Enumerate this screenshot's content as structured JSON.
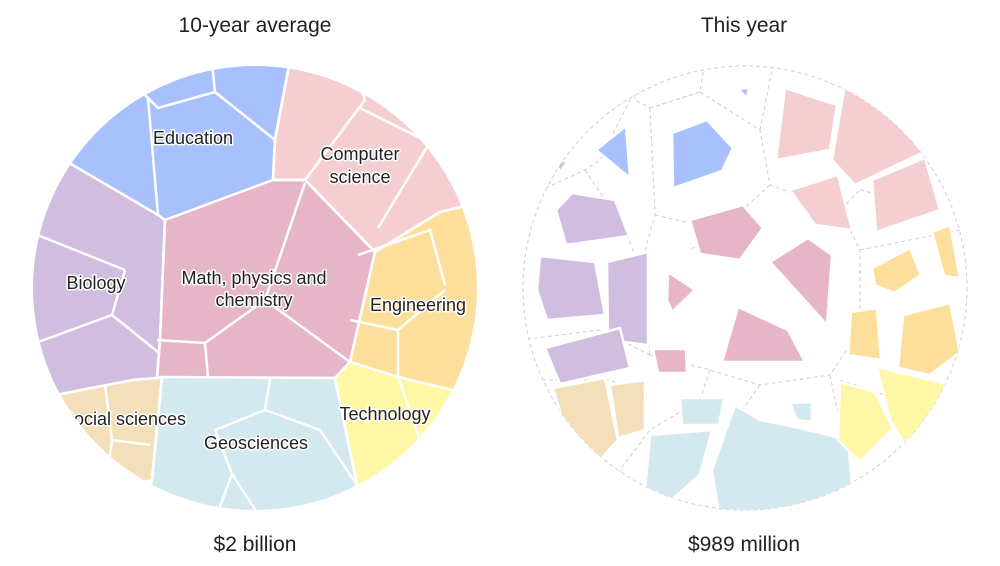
{
  "panels": [
    {
      "title": "10-year average",
      "total": "$2 billion"
    },
    {
      "title": "This year",
      "total": "$989 million"
    }
  ],
  "fields": [
    {
      "key": "education",
      "label": "Education",
      "color": "#a8c0fb"
    },
    {
      "key": "computer_science",
      "label_lines": [
        "Computer",
        "science"
      ],
      "color": "#f4ced0"
    },
    {
      "key": "biology",
      "label": "Biology",
      "color": "#d0bde0"
    },
    {
      "key": "math_physics",
      "label_lines": [
        "Math, physics and",
        "chemistry"
      ],
      "color": "#e6b5c8"
    },
    {
      "key": "engineering",
      "label": "Engineering",
      "color": "#fddf9b"
    },
    {
      "key": "social_sciences",
      "label": "Social sciences",
      "color": "#f3e0bb"
    },
    {
      "key": "geosciences",
      "label": "Geosciences",
      "color": "#d3e8ef"
    },
    {
      "key": "technology",
      "label": "Technology",
      "color": "#fdf7a6"
    }
  ],
  "colors": {
    "outline": "#ffffff",
    "dashed_outline": "#cfcfcf"
  }
}
